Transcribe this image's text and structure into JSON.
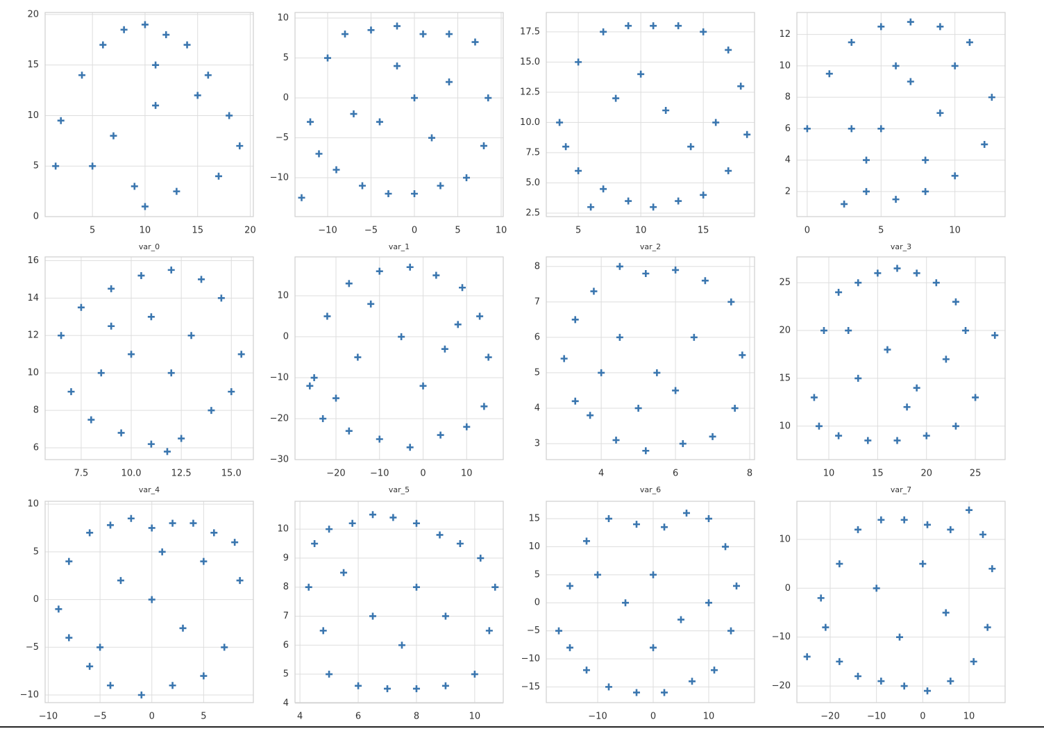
{
  "chart_data": [
    {
      "type": "scatter",
      "x_label": "var_0",
      "color": "#3a76af",
      "grid": true,
      "xlim": [
        0.5,
        20.3
      ],
      "ylim": [
        0,
        20.2
      ],
      "xticks": [
        5,
        10,
        15,
        20
      ],
      "yticks": [
        0,
        5,
        10,
        15,
        20
      ],
      "x": [
        2,
        4,
        6,
        8,
        10,
        12,
        14,
        16,
        18,
        19,
        5,
        9,
        13,
        17,
        7,
        11,
        15,
        10,
        11,
        1.5
      ],
      "y": [
        9.5,
        14,
        17,
        18.5,
        19,
        18,
        17,
        14,
        10,
        7,
        5,
        3,
        2.5,
        4,
        8,
        11,
        12,
        1,
        15,
        5
      ]
    },
    {
      "type": "scatter",
      "x_label": "var_1",
      "color": "#3a76af",
      "grid": true,
      "xlim": [
        -13.76,
        10.24
      ],
      "ylim": [
        -14.87,
        10.7
      ],
      "xticks": [
        {
          "value": -10,
          "label": "−10"
        },
        {
          "value": -5,
          "label": "−5"
        },
        0,
        5,
        10
      ],
      "yticks": [
        {
          "value": -10,
          "label": "−10"
        },
        {
          "value": -5,
          "label": "−5"
        },
        0,
        5,
        10
      ],
      "x": [
        -12,
        -10,
        -8,
        -5,
        -2,
        1,
        4,
        7,
        8.5,
        8,
        6,
        3,
        0,
        -3,
        -6,
        -9,
        -11,
        -4,
        0,
        4,
        -7,
        -2,
        2,
        -13
      ],
      "y": [
        -3,
        5,
        8,
        8.5,
        9,
        8,
        8,
        7,
        0,
        -6,
        -10,
        -11,
        -12,
        -12,
        -11,
        -9,
        -7,
        -3,
        0,
        2,
        -2,
        4,
        -5,
        -12.5
      ]
    },
    {
      "type": "scatter",
      "x_label": "var_2",
      "color": "#3a76af",
      "grid": true,
      "xlim": [
        2.44,
        19.1
      ],
      "ylim": [
        2.21,
        19.1
      ],
      "xticks": [
        5,
        10,
        15
      ],
      "yticks": [
        2.5,
        {
          "value": 5,
          "label": "5.0"
        },
        7.5,
        {
          "value": 10,
          "label": "10.0"
        },
        12.5,
        {
          "value": 15,
          "label": "15.0"
        },
        17.5
      ],
      "x": [
        3.5,
        5,
        7,
        9,
        11,
        13,
        15,
        17,
        18,
        18.5,
        17,
        15,
        13,
        11,
        9,
        7,
        5,
        4,
        8,
        12,
        16,
        10,
        14,
        6
      ],
      "y": [
        10,
        15,
        17.5,
        18,
        18,
        18,
        17.5,
        16,
        13,
        9,
        6,
        4,
        3.5,
        3,
        3.5,
        4.5,
        6,
        8,
        12,
        11,
        10,
        14,
        8,
        3
      ]
    },
    {
      "type": "scatter",
      "x_label": "var_3",
      "color": "#3a76af",
      "grid": true,
      "xlim": [
        -0.7,
        13.4
      ],
      "ylim": [
        0.4,
        13.4
      ],
      "xticks": [
        0,
        5,
        10
      ],
      "yticks": [
        2,
        4,
        6,
        8,
        10,
        12
      ],
      "x": [
        0,
        1.5,
        3,
        5,
        7,
        9,
        11,
        12.5,
        12,
        10,
        8,
        6,
        4,
        2.5,
        5,
        7,
        9,
        4,
        6,
        8,
        10,
        3
      ],
      "y": [
        6,
        9.5,
        11.5,
        12.5,
        12.8,
        12.5,
        11.5,
        8,
        5,
        3,
        2,
        1.5,
        2,
        1.2,
        6,
        9,
        7,
        4,
        10,
        4,
        10,
        6
      ]
    },
    {
      "type": "scatter",
      "x_label": "var_4",
      "color": "#3a76af",
      "grid": true,
      "xlim": [
        5.7,
        16.1
      ],
      "ylim": [
        5.37,
        16.2
      ],
      "xticks": [
        7.5,
        {
          "value": 10,
          "label": "10.0"
        },
        12.5,
        {
          "value": 15,
          "label": "15.0"
        }
      ],
      "yticks": [
        6,
        8,
        10,
        12,
        14,
        16
      ],
      "x": [
        6.5,
        7.5,
        9,
        10.5,
        12,
        13.5,
        14.5,
        15.5,
        15,
        14,
        12.5,
        11,
        9.5,
        8,
        7,
        10,
        12,
        9,
        11,
        13,
        8.5,
        11.8
      ],
      "y": [
        12,
        13.5,
        14.5,
        15.2,
        15.5,
        15,
        14,
        11,
        9,
        8,
        6.5,
        6.2,
        6.8,
        7.5,
        9,
        11,
        10,
        12.5,
        13,
        12,
        10,
        5.8
      ]
    },
    {
      "type": "scatter",
      "x_label": "var_5",
      "color": "#3a76af",
      "grid": true,
      "xlim": [
        -29.4,
        18.4
      ],
      "ylim": [
        -30,
        19.5
      ],
      "xticks": [
        {
          "value": -20,
          "label": "−20"
        },
        {
          "value": -10,
          "label": "−10"
        },
        0,
        10
      ],
      "yticks": [
        {
          "value": -30,
          "label": "−30"
        },
        {
          "value": -20,
          "label": "−20"
        },
        {
          "value": -10,
          "label": "−10"
        },
        0,
        10
      ],
      "x": [
        -26,
        -22,
        -17,
        -10,
        -3,
        3,
        9,
        13,
        15,
        14,
        10,
        4,
        -3,
        -10,
        -17,
        -23,
        -25,
        -15,
        -5,
        5,
        -12,
        0,
        8,
        -20
      ],
      "y": [
        -12,
        5,
        13,
        16,
        17,
        15,
        12,
        5,
        -5,
        -17,
        -22,
        -24,
        -27,
        -25,
        -23,
        -20,
        -10,
        -5,
        0,
        -3,
        8,
        -12,
        3,
        -15
      ]
    },
    {
      "type": "scatter",
      "x_label": "var_6",
      "color": "#3a76af",
      "grid": true,
      "xlim": [
        2.52,
        8.13
      ],
      "ylim": [
        2.55,
        8.27
      ],
      "xticks": [
        4,
        6,
        8
      ],
      "yticks": [
        3,
        4,
        5,
        6,
        7,
        8
      ],
      "x": [
        3,
        3.3,
        3.8,
        4.5,
        5.2,
        6,
        6.8,
        7.5,
        7.8,
        7.6,
        7,
        6.2,
        5.2,
        4.4,
        3.7,
        3.3,
        4.5,
        5.5,
        6.5,
        5,
        6,
        4
      ],
      "y": [
        5.4,
        6.5,
        7.3,
        8,
        7.8,
        7.9,
        7.6,
        7,
        5.5,
        4,
        3.2,
        3,
        2.8,
        3.1,
        3.8,
        4.2,
        6,
        5,
        6,
        4,
        4.5,
        5
      ]
    },
    {
      "type": "scatter",
      "x_label": "var_7",
      "color": "#3a76af",
      "grid": true,
      "xlim": [
        6.73,
        28.05
      ],
      "ylim": [
        6.5,
        27.7
      ],
      "xticks": [
        10,
        15,
        20,
        25
      ],
      "yticks": [
        10,
        15,
        20,
        25
      ],
      "x": [
        8.5,
        9.5,
        11,
        13,
        15,
        17,
        19,
        21,
        23,
        24,
        27,
        25,
        23,
        20,
        17,
        14,
        11,
        9,
        13,
        16,
        19,
        22,
        12,
        18
      ],
      "y": [
        13,
        20,
        24,
        25,
        26,
        26.5,
        26,
        25,
        23,
        20,
        19.5,
        13,
        10,
        9,
        8.5,
        8.5,
        9,
        10,
        15,
        18,
        14,
        17,
        20,
        12
      ]
    },
    {
      "type": "scatter",
      "color": "#3a76af",
      "grid": true,
      "xlim": [
        -10.3,
        9.8
      ],
      "ylim": [
        -10.8,
        10.3
      ],
      "xticks": [
        {
          "value": -10,
          "label": "−10"
        },
        {
          "value": -5,
          "label": "−5"
        },
        0,
        5
      ],
      "yticks": [
        {
          "value": -10,
          "label": "−10"
        },
        {
          "value": -5,
          "label": "−5"
        },
        0,
        5,
        10
      ],
      "x": [
        -9,
        -8,
        -6,
        -4,
        -2,
        0,
        2,
        4,
        6,
        8,
        8.5,
        7,
        5,
        2,
        -1,
        -4,
        -6,
        -8,
        -3,
        0,
        3,
        -5,
        5,
        1
      ],
      "y": [
        -1,
        4,
        7,
        7.8,
        8.5,
        7.5,
        8,
        8,
        7,
        6,
        2,
        -5,
        -8,
        -9,
        -10,
        -9,
        -7,
        -4,
        2,
        0,
        -3,
        -5,
        4,
        5
      ]
    },
    {
      "type": "scatter",
      "color": "#3a76af",
      "grid": true,
      "xlim": [
        3.83,
        10.98
      ],
      "ylim": [
        4.02,
        10.96
      ],
      "xticks": [
        4,
        6,
        8,
        10
      ],
      "yticks": [
        4,
        5,
        6,
        7,
        8,
        9,
        10
      ],
      "x": [
        4.3,
        4.5,
        5,
        5.8,
        6.5,
        7.2,
        8,
        8.8,
        9.5,
        10.2,
        10.7,
        10.5,
        10,
        9,
        8,
        7,
        6,
        5,
        4.8,
        6.5,
        8,
        7.5,
        9,
        5.5
      ],
      "y": [
        8,
        9.5,
        10,
        10.2,
        10.5,
        10.4,
        10.2,
        9.8,
        9.5,
        9,
        8,
        6.5,
        5,
        4.6,
        4.5,
        4.5,
        4.6,
        5,
        6.5,
        7,
        8,
        6,
        7,
        8.5
      ]
    },
    {
      "type": "scatter",
      "color": "#3a76af",
      "grid": true,
      "xlim": [
        -19.25,
        18.25
      ],
      "ylim": [
        -17.8,
        18.1
      ],
      "xticks": [
        {
          "value": -10,
          "label": "−10"
        },
        0,
        10
      ],
      "yticks": [
        {
          "value": -15,
          "label": "−15"
        },
        {
          "value": -10,
          "label": "−10"
        },
        {
          "value": -5,
          "label": "−5"
        },
        0,
        5,
        10,
        15
      ],
      "x": [
        -17,
        -15,
        -12,
        -8,
        -3,
        2,
        6,
        10,
        13,
        15,
        14,
        11,
        7,
        2,
        -3,
        -8,
        -12,
        -15,
        -5,
        0,
        5,
        -10,
        10,
        0
      ],
      "y": [
        -5,
        3,
        11,
        15,
        14,
        13.5,
        16,
        15,
        10,
        3,
        -5,
        -12,
        -14,
        -16,
        -16,
        -15,
        -12,
        -8,
        0,
        5,
        -3,
        5,
        0,
        -8
      ]
    },
    {
      "type": "scatter",
      "color": "#3a76af",
      "grid": true,
      "xlim": [
        -27.2,
        17.8
      ],
      "ylim": [
        -23.4,
        17.8
      ],
      "xticks": [
        {
          "value": -20,
          "label": "−20"
        },
        {
          "value": -10,
          "label": "−10"
        },
        0,
        10
      ],
      "yticks": [
        {
          "value": -20,
          "label": "−20"
        },
        {
          "value": -10,
          "label": "−10"
        },
        0,
        10
      ],
      "x": [
        -25,
        -22,
        -18,
        -14,
        -9,
        -4,
        1,
        6,
        10,
        13,
        15,
        14,
        11,
        6,
        1,
        -4,
        -9,
        -14,
        -18,
        -21,
        -10,
        0,
        5,
        -5
      ],
      "y": [
        -14,
        -2,
        5,
        12,
        14,
        14,
        13,
        12,
        16,
        11,
        4,
        -8,
        -15,
        -19,
        -21,
        -20,
        -19,
        -18,
        -15,
        -8,
        0,
        5,
        -5,
        -10
      ]
    }
  ]
}
